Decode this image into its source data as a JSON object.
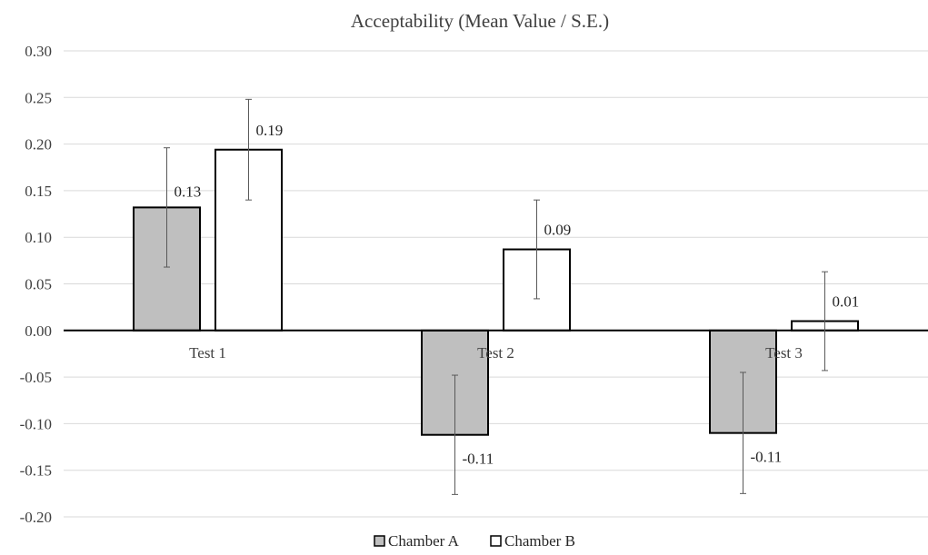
{
  "chart_data": {
    "type": "bar",
    "title": "Acceptability (Mean Value / S.E.)",
    "xlabel": "",
    "ylabel": "",
    "categories": [
      "Test 1",
      "Test 2",
      "Test 3"
    ],
    "ylim": [
      -0.2,
      0.3
    ],
    "yticks": [
      0.3,
      0.25,
      0.2,
      0.15,
      0.1,
      0.05,
      0.0,
      -0.05,
      -0.1,
      -0.15,
      -0.2
    ],
    "ytick_labels": [
      "0.30",
      "0.25",
      "0.20",
      "0.15",
      "0.10",
      "0.05",
      "0.00",
      "-0.05",
      "-0.10",
      "-0.15",
      "-0.20"
    ],
    "grid": true,
    "legend_position": "bottom",
    "series": [
      {
        "name": "Chamber A",
        "values": [
          0.132,
          -0.112,
          -0.11
        ],
        "errors": [
          0.064,
          0.064,
          0.065
        ],
        "labels": [
          "0.13",
          "-0.11",
          "-0.11"
        ],
        "fill": "#bfbfbf",
        "stroke": "#000000"
      },
      {
        "name": "Chamber B",
        "values": [
          0.194,
          0.087,
          0.01
        ],
        "errors": [
          0.054,
          0.053,
          0.053
        ],
        "labels": [
          "0.19",
          "0.09",
          "0.01"
        ],
        "fill": "#ffffff",
        "stroke": "#000000"
      }
    ]
  }
}
